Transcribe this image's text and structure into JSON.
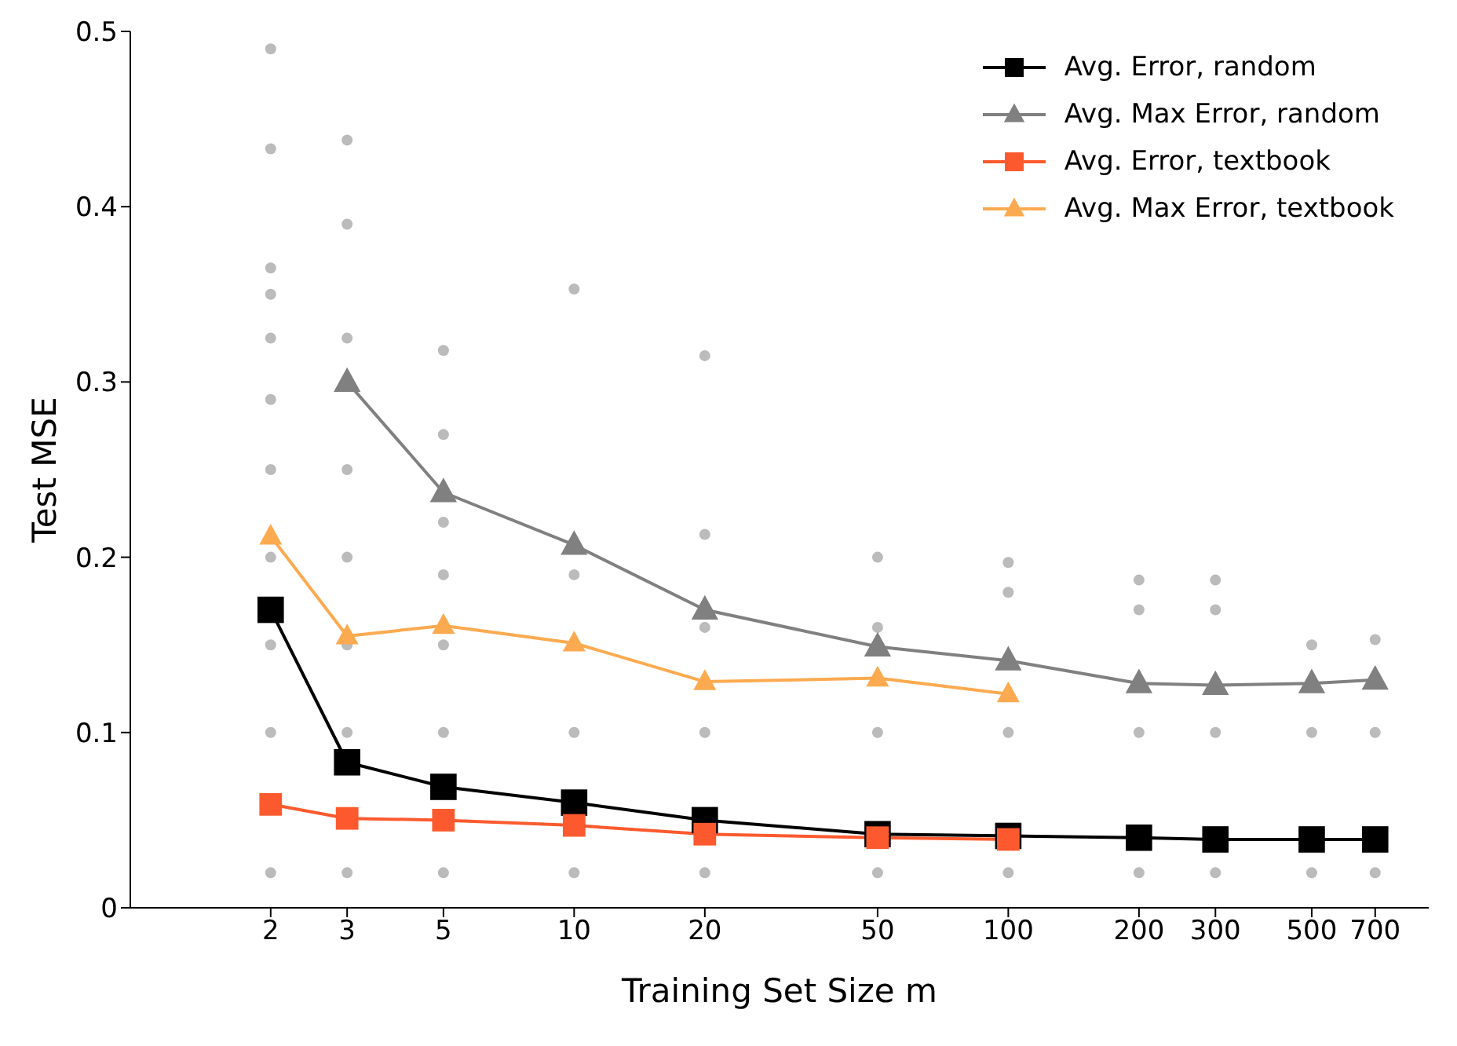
{
  "chart_data": {
    "type": "line",
    "xlabel": "Training Set Size m",
    "ylabel": "Test MSE",
    "log": "x",
    "xlim": [
      0.95,
      930
    ],
    "xticks": [
      2,
      3,
      5,
      10,
      20,
      50,
      100,
      200,
      300,
      500,
      700
    ],
    "ylim": [
      0,
      0.5
    ],
    "yticks": [
      0,
      0.1,
      0.2,
      0.3,
      0.4,
      0.5
    ],
    "grid": false,
    "legend": "top right",
    "x": [
      2,
      3,
      5,
      10,
      20,
      50,
      100,
      200,
      300,
      500,
      700
    ],
    "series": [
      {
        "type": "scatter",
        "color": "#bbbbbb",
        "marker": "circle",
        "x": [
          2,
          2,
          2,
          2,
          2,
          2,
          2,
          2,
          2,
          2,
          2,
          3,
          3,
          3,
          3,
          3,
          3,
          3,
          3,
          5,
          5,
          5,
          5,
          5,
          5,
          5,
          10,
          10,
          10,
          10,
          20,
          20,
          20,
          20,
          20,
          50,
          50,
          50,
          50,
          100,
          100,
          100,
          100,
          200,
          200,
          200,
          200,
          300,
          300,
          300,
          300,
          500,
          500,
          500,
          700,
          700,
          700
        ],
        "values": [
          0.49,
          0.433,
          0.365,
          0.35,
          0.325,
          0.29,
          0.25,
          0.2,
          0.15,
          0.1,
          0.02,
          0.438,
          0.39,
          0.325,
          0.25,
          0.2,
          0.15,
          0.1,
          0.02,
          0.318,
          0.27,
          0.22,
          0.19,
          0.15,
          0.1,
          0.02,
          0.353,
          0.19,
          0.1,
          0.02,
          0.315,
          0.213,
          0.16,
          0.1,
          0.02,
          0.2,
          0.16,
          0.1,
          0.02,
          0.197,
          0.18,
          0.1,
          0.02,
          0.187,
          0.17,
          0.1,
          0.02,
          0.187,
          0.17,
          0.1,
          0.02,
          0.15,
          0.1,
          0.02,
          0.153,
          0.1,
          0.02
        ]
      },
      {
        "name": "Avg. Error, random",
        "color": "#000000",
        "marker": "square",
        "values": [
          0.17,
          0.083,
          0.069,
          0.06,
          0.05,
          0.042,
          0.041,
          0.04,
          0.039,
          0.039,
          0.039
        ]
      },
      {
        "name": "Avg. Max Error, random",
        "color": "#808080",
        "marker": "triangle",
        "values": [
          null,
          0.3,
          0.237,
          0.207,
          0.17,
          0.149,
          0.141,
          0.128,
          0.127,
          0.128,
          0.13
        ]
      },
      {
        "name": "Avg. Error, textbook",
        "color": "#fc5a2e",
        "marker": "square",
        "x": [
          2,
          3,
          5,
          10,
          20,
          50,
          100
        ],
        "values": [
          0.059,
          0.051,
          0.05,
          0.047,
          0.042,
          0.04,
          0.039
        ]
      },
      {
        "name": "Avg. Max Error, textbook",
        "color": "#fcaa50",
        "marker": "triangle",
        "x": [
          2,
          3,
          5,
          10,
          20,
          50,
          100
        ],
        "values": [
          0.212,
          0.155,
          0.161,
          0.151,
          0.129,
          0.131,
          0.122
        ]
      }
    ]
  }
}
